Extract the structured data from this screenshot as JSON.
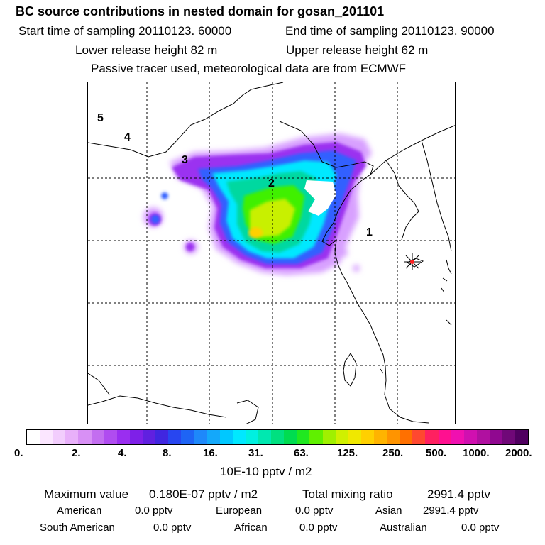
{
  "header": {
    "title": "BC  source contributions in nested domain for gosan_201101",
    "start": "Start time of sampling 20110123. 60000",
    "end": "End time of sampling 20110123. 90000",
    "lower": "Lower release height   82 m",
    "upper": "Upper release height   62 m",
    "tracer": "Passive tracer used, meteorological data are from ECMWF"
  },
  "map": {
    "markers": [
      "1",
      "2",
      "3",
      "4",
      "5"
    ],
    "colors": {
      "low": "#d8a0ff",
      "purple": "#9b30f0",
      "blue": "#3060ff",
      "cyan": "#00e8ff",
      "teal": "#00d8a0",
      "green": "#40f000",
      "yellowgreen": "#c8f000",
      "yellow": "#ffd000",
      "station": "#ff2020"
    }
  },
  "colorbar": {
    "swatches": [
      "#ffffff",
      "#fbe6ff",
      "#f2cdfd",
      "#e8b0fa",
      "#d890f5",
      "#c36ef0",
      "#b04cf0",
      "#9a2ef0",
      "#7e20e8",
      "#6020e0",
      "#4026e0",
      "#2846f0",
      "#1e64f5",
      "#1e88fa",
      "#14a8fa",
      "#00c8ff",
      "#00e8ff",
      "#00f0e0",
      "#00e8b0",
      "#00e080",
      "#00dc50",
      "#20e820",
      "#60f000",
      "#a0f000",
      "#d0f000",
      "#f0e800",
      "#ffd000",
      "#ffb400",
      "#ff9400",
      "#ff7000",
      "#ff4830",
      "#ff2060",
      "#ff1090",
      "#f010b0",
      "#d010b0",
      "#b010a0",
      "#900890",
      "#700878",
      "#500060"
    ],
    "ticks": [
      "0.",
      "2.",
      "4.",
      "8.",
      "16.",
      "31.",
      "63.",
      "125.",
      "250.",
      "500.",
      "1000.",
      "2000."
    ],
    "unit": "10E-10 pptv / m2"
  },
  "summary": {
    "max_label": "Maximum value",
    "max_value": "0.180E-07 pptv / m2",
    "total_label": "Total mixing ratio",
    "total_value": "2991.4 pptv",
    "regions": [
      {
        "name": "American",
        "value": "0.0 pptv"
      },
      {
        "name": "European",
        "value": "0.0 pptv"
      },
      {
        "name": "Asian",
        "value": "2991.4 pptv"
      },
      {
        "name": "South American",
        "value": "0.0 pptv"
      },
      {
        "name": "African",
        "value": "0.0 pptv"
      },
      {
        "name": "Australian",
        "value": "0.0 pptv"
      }
    ]
  }
}
